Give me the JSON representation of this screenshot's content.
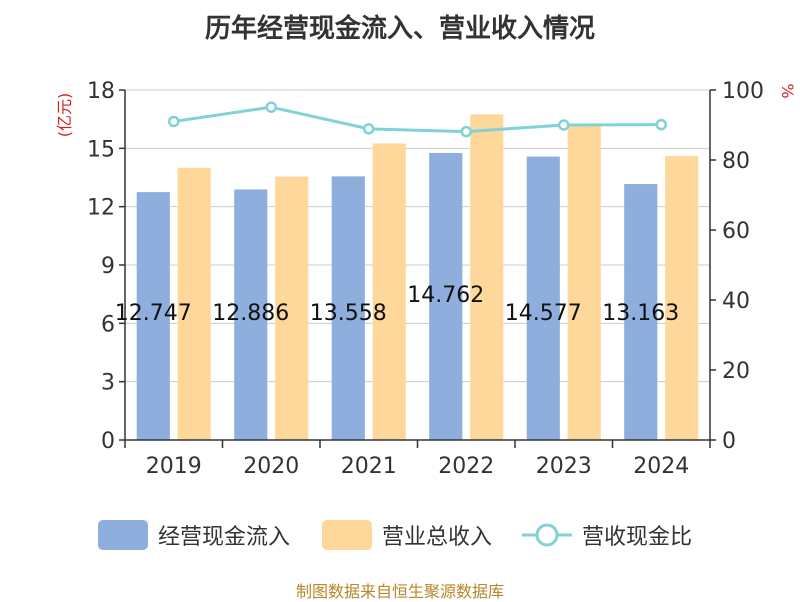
{
  "title": "历年经营现金流入、营业收入情况",
  "source_note": "制图数据来自恒生聚源数据库",
  "colors": {
    "cash_inflow": "#8eaedd",
    "revenue": "#fdd89a",
    "ratio": "#7fd3d7",
    "unit_left": "#d42020",
    "unit_right": "#d42020",
    "grid": "#cccccc",
    "axis": "#333333"
  },
  "chart_data": {
    "type": "bar",
    "title": "历年经营现金流入、营业收入情况",
    "categories": [
      "2019",
      "2020",
      "2021",
      "2022",
      "2023",
      "2024"
    ],
    "y_left": {
      "unit": "(亿元)",
      "ylim": [
        0,
        18
      ],
      "ticks": [
        "0",
        "3",
        "6",
        "9",
        "12",
        "15",
        "18"
      ]
    },
    "y_right": {
      "unit": "%",
      "ylim": [
        0,
        100
      ],
      "ticks": [
        "0",
        "20",
        "40",
        "60",
        "80",
        "100"
      ]
    },
    "series": [
      {
        "name": "经营现金流入",
        "type": "bar",
        "axis": "left",
        "values": [
          12.747,
          12.886,
          13.558,
          14.762,
          14.577,
          13.163
        ],
        "labels": [
          "12.747",
          "12.886",
          "13.558",
          "14.762",
          "14.577",
          "13.163"
        ]
      },
      {
        "name": "营业总收入",
        "type": "bar",
        "axis": "left",
        "values": [
          14.0,
          13.55,
          15.25,
          16.75,
          16.2,
          14.6
        ]
      },
      {
        "name": "营收现金比",
        "type": "line",
        "axis": "right",
        "values": [
          91.0,
          95.1,
          88.9,
          88.1,
          90.0,
          90.1
        ]
      }
    ],
    "grid": true,
    "legend_position": "bottom"
  }
}
